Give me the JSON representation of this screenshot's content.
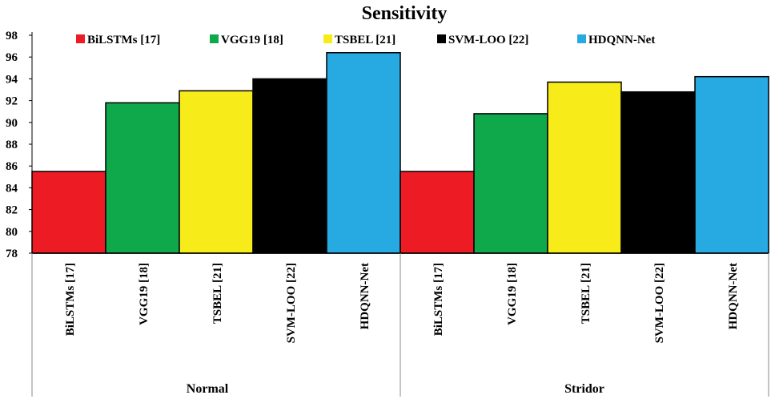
{
  "chart_data": {
    "type": "bar",
    "title": "Sensitivity",
    "xlabel": "",
    "ylabel": "",
    "ylim": [
      78,
      98
    ],
    "yticks": [
      78,
      80,
      82,
      84,
      86,
      88,
      90,
      92,
      94,
      96,
      98
    ],
    "groups": [
      "Normal",
      "Stridor"
    ],
    "categories": [
      "BiLSTMs [17]",
      "VGG19 [18]",
      "TSBEL [21]",
      "SVM-LOO [22]",
      "HDQNN-Net"
    ],
    "colors": [
      "#ed1c24",
      "#0fa84b",
      "#f7ec1a",
      "#000000",
      "#27a9e1"
    ],
    "legend": {
      "labels": [
        "BiLSTMs [17]",
        "VGG19 [18]",
        "TSBEL [21]",
        "SVM-LOO [22]",
        "HDQNN-Net"
      ],
      "placement": "top-center"
    },
    "series": [
      {
        "group": "Normal",
        "values": [
          85.5,
          91.8,
          92.9,
          94.0,
          96.4
        ]
      },
      {
        "group": "Stridor",
        "values": [
          85.5,
          90.8,
          93.7,
          92.8,
          94.2
        ]
      }
    ]
  }
}
